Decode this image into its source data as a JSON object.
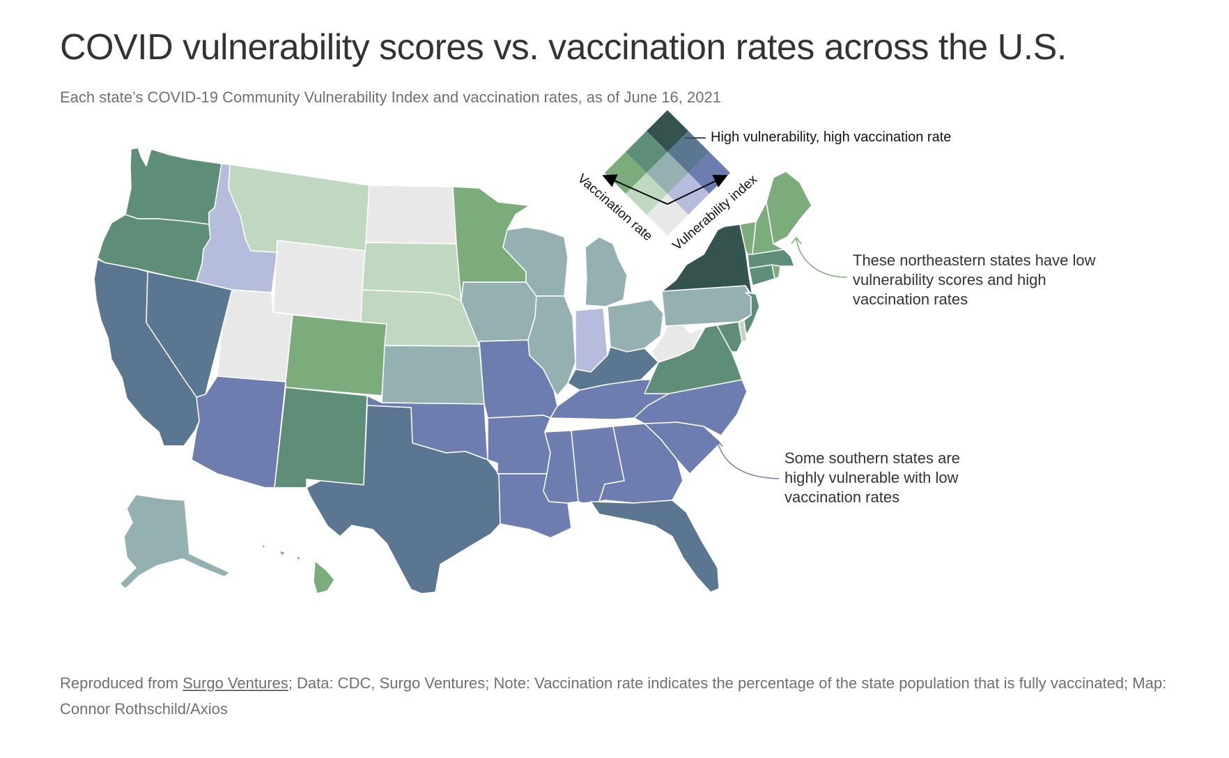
{
  "title": "COVID vulnerability scores vs. vaccination rates across the U.S.",
  "subtitle": "Each state’s COVID-19 Community Vulnerability Index and vaccination rates, as of June 16, 2021",
  "legend": {
    "high_label": "High vulnerability, high vaccination rate",
    "x_axis_label": "Vaccination rate",
    "y_axis_label": "Vulnerability index",
    "palette": [
      [
        "#e8e8e8",
        "#bfd8bf",
        "#7cab7c"
      ],
      [
        "#b6bcdb",
        "#95b0b0",
        "#5f8e78"
      ],
      [
        "#6e7db0",
        "#5a7690",
        "#34534f"
      ]
    ]
  },
  "annotations": {
    "northeast": "These northeastern states have low vulnerability scores and high vaccination rates",
    "south": "Some southern states are highly vulnerable with low vaccination rates",
    "northeast_color": "#7cab7c",
    "south_color": "#6e7db0"
  },
  "footer": {
    "prefix": "Reproduced from ",
    "link_text": "Surgo Ventures",
    "rest": "; Data: CDC, Surgo Ventures; Note: Vaccination rate indicates the percentage of the state population that is fully vaccinated; Map: Connor Rothschild/Axios"
  },
  "states": [
    {
      "name": "Washington",
      "vuln": 1,
      "vacc": 2
    },
    {
      "name": "Oregon",
      "vuln": 1,
      "vacc": 2
    },
    {
      "name": "California",
      "vuln": 2,
      "vacc": 1
    },
    {
      "name": "Nevada",
      "vuln": 2,
      "vacc": 1
    },
    {
      "name": "Idaho",
      "vuln": 1,
      "vacc": 0
    },
    {
      "name": "Montana",
      "vuln": 0,
      "vacc": 1
    },
    {
      "name": "Wyoming",
      "vuln": 0,
      "vacc": 0
    },
    {
      "name": "Utah",
      "vuln": 0,
      "vacc": 0
    },
    {
      "name": "Arizona",
      "vuln": 2,
      "vacc": 0
    },
    {
      "name": "Colorado",
      "vuln": 0,
      "vacc": 2
    },
    {
      "name": "New Mexico",
      "vuln": 1,
      "vacc": 2
    },
    {
      "name": "North Dakota",
      "vuln": 0,
      "vacc": 0
    },
    {
      "name": "South Dakota",
      "vuln": 0,
      "vacc": 1
    },
    {
      "name": "Nebraska",
      "vuln": 0,
      "vacc": 1
    },
    {
      "name": "Kansas",
      "vuln": 1,
      "vacc": 1
    },
    {
      "name": "Oklahoma",
      "vuln": 2,
      "vacc": 0
    },
    {
      "name": "Texas",
      "vuln": 2,
      "vacc": 1
    },
    {
      "name": "Minnesota",
      "vuln": 0,
      "vacc": 2
    },
    {
      "name": "Iowa",
      "vuln": 1,
      "vacc": 1
    },
    {
      "name": "Missouri",
      "vuln": 2,
      "vacc": 0
    },
    {
      "name": "Arkansas",
      "vuln": 2,
      "vacc": 0
    },
    {
      "name": "Louisiana",
      "vuln": 2,
      "vacc": 0
    },
    {
      "name": "Wisconsin",
      "vuln": 1,
      "vacc": 1
    },
    {
      "name": "Illinois",
      "vuln": 1,
      "vacc": 1
    },
    {
      "name": "Michigan",
      "vuln": 1,
      "vacc": 1
    },
    {
      "name": "Indiana",
      "vuln": 1,
      "vacc": 0
    },
    {
      "name": "Ohio",
      "vuln": 1,
      "vacc": 1
    },
    {
      "name": "Kentucky",
      "vuln": 2,
      "vacc": 1
    },
    {
      "name": "Tennessee",
      "vuln": 2,
      "vacc": 0
    },
    {
      "name": "Mississippi",
      "vuln": 2,
      "vacc": 0
    },
    {
      "name": "Alabama",
      "vuln": 2,
      "vacc": 0
    },
    {
      "name": "Georgia",
      "vuln": 2,
      "vacc": 0
    },
    {
      "name": "Florida",
      "vuln": 2,
      "vacc": 1
    },
    {
      "name": "South Carolina",
      "vuln": 2,
      "vacc": 0
    },
    {
      "name": "North Carolina",
      "vuln": 2,
      "vacc": 0
    },
    {
      "name": "Virginia",
      "vuln": 1,
      "vacc": 2
    },
    {
      "name": "West Virginia",
      "vuln": 0,
      "vacc": 0
    },
    {
      "name": "Pennsylvania",
      "vuln": 1,
      "vacc": 1
    },
    {
      "name": "New York",
      "vuln": 2,
      "vacc": 2
    },
    {
      "name": "New Jersey",
      "vuln": 1,
      "vacc": 2
    },
    {
      "name": "Maryland",
      "vuln": 1,
      "vacc": 2
    },
    {
      "name": "Delaware",
      "vuln": 0,
      "vacc": 1
    },
    {
      "name": "Connecticut",
      "vuln": 1,
      "vacc": 2
    },
    {
      "name": "Rhode Island",
      "vuln": 0,
      "vacc": 2
    },
    {
      "name": "Massachusetts",
      "vuln": 1,
      "vacc": 2
    },
    {
      "name": "Vermont",
      "vuln": 0,
      "vacc": 2
    },
    {
      "name": "New Hampshire",
      "vuln": 0,
      "vacc": 2
    },
    {
      "name": "Maine",
      "vuln": 0,
      "vacc": 2
    },
    {
      "name": "Alaska",
      "vuln": 1,
      "vacc": 1
    },
    {
      "name": "Hawaii",
      "vuln": 0,
      "vacc": 2
    }
  ]
}
